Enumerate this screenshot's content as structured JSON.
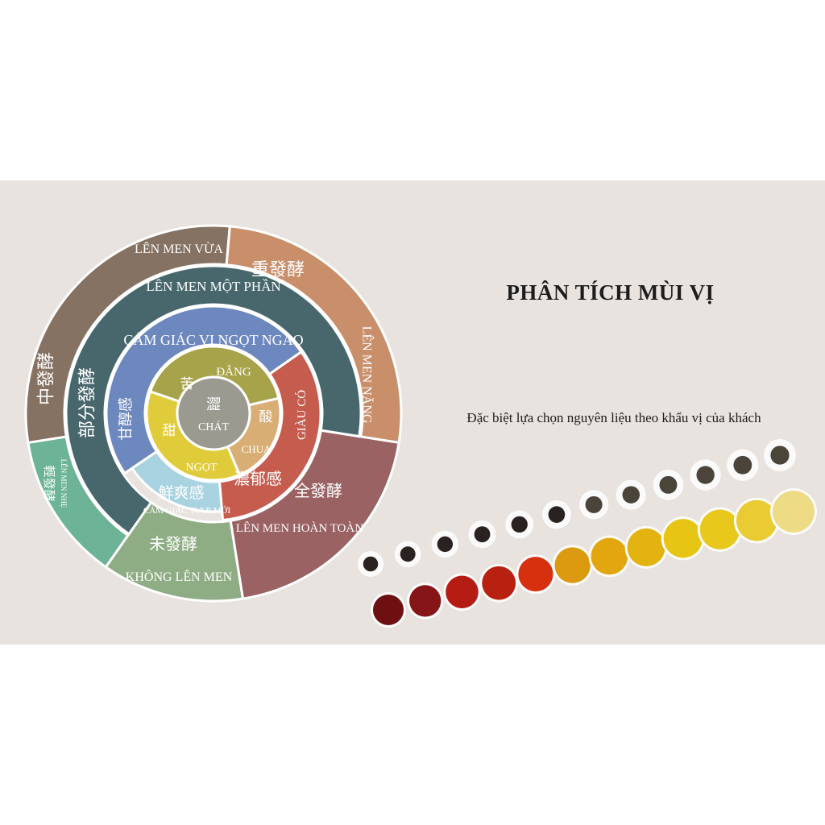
{
  "title": "PHÂN TÍCH MÙI VỊ",
  "subtitle": "Đặc biệt lựa chọn nguyên liệu theo khẩu vị của khách",
  "wheel": {
    "outer": {
      "medium": {
        "zh": "中發酵",
        "vi": "LÊN MEN VỪA",
        "color": "#857262"
      },
      "heavy": {
        "zh": "重發酵",
        "vi": "LÊN MEN NẶNG",
        "color": "#c98e6a"
      },
      "full": {
        "zh": "全發酵",
        "vi": "LÊN MEN HOÀN TOÀN",
        "color": "#9a6262"
      },
      "none": {
        "zh": "未發酵",
        "vi": "KHÔNG LÊN MEN",
        "color": "#8fad84"
      },
      "light": {
        "zh": "輕發酵",
        "vi": "LÊN MEN NHẸ",
        "color": "#6db496"
      }
    },
    "partial": {
      "zh": "部分發酵",
      "vi": "LÊN MEN MỘT PHẦN",
      "color": "#47676d"
    },
    "middle": {
      "sweet_mellow": {
        "zh": "甘醇感",
        "vi": "CẢM GIÁC VỊ NGỌT NGÀO",
        "color": "#6d88bf"
      },
      "rich": {
        "zh": "濃郁感",
        "vi": "GIÀU CÓ",
        "color": "#c65c4e"
      },
      "fresh": {
        "zh": "鮮爽感",
        "vi": "CẢM GIÁC TƯƠI MỚI",
        "color": "#a9d3e0"
      }
    },
    "inner": {
      "bitter": {
        "zh": "苦",
        "vi": "ĐẮNG",
        "color": "#a7a34a"
      },
      "sour": {
        "zh": "酸",
        "vi": "CHUA",
        "color": "#d8ae74"
      },
      "sweet": {
        "zh": "甜",
        "vi": "NGỌT",
        "color": "#e0cc3a"
      }
    },
    "center": {
      "zh": "澀",
      "vi": "CHÁT",
      "color": "#9a9a90"
    }
  },
  "tea_liquor_colors": [
    "#6e1012",
    "#861517",
    "#b51c14",
    "#b8200f",
    "#d7300e",
    "#dc9a10",
    "#e2a70f",
    "#e3b312",
    "#e7c515",
    "#e8c91b",
    "#e9cc33",
    "#eddc85"
  ]
}
